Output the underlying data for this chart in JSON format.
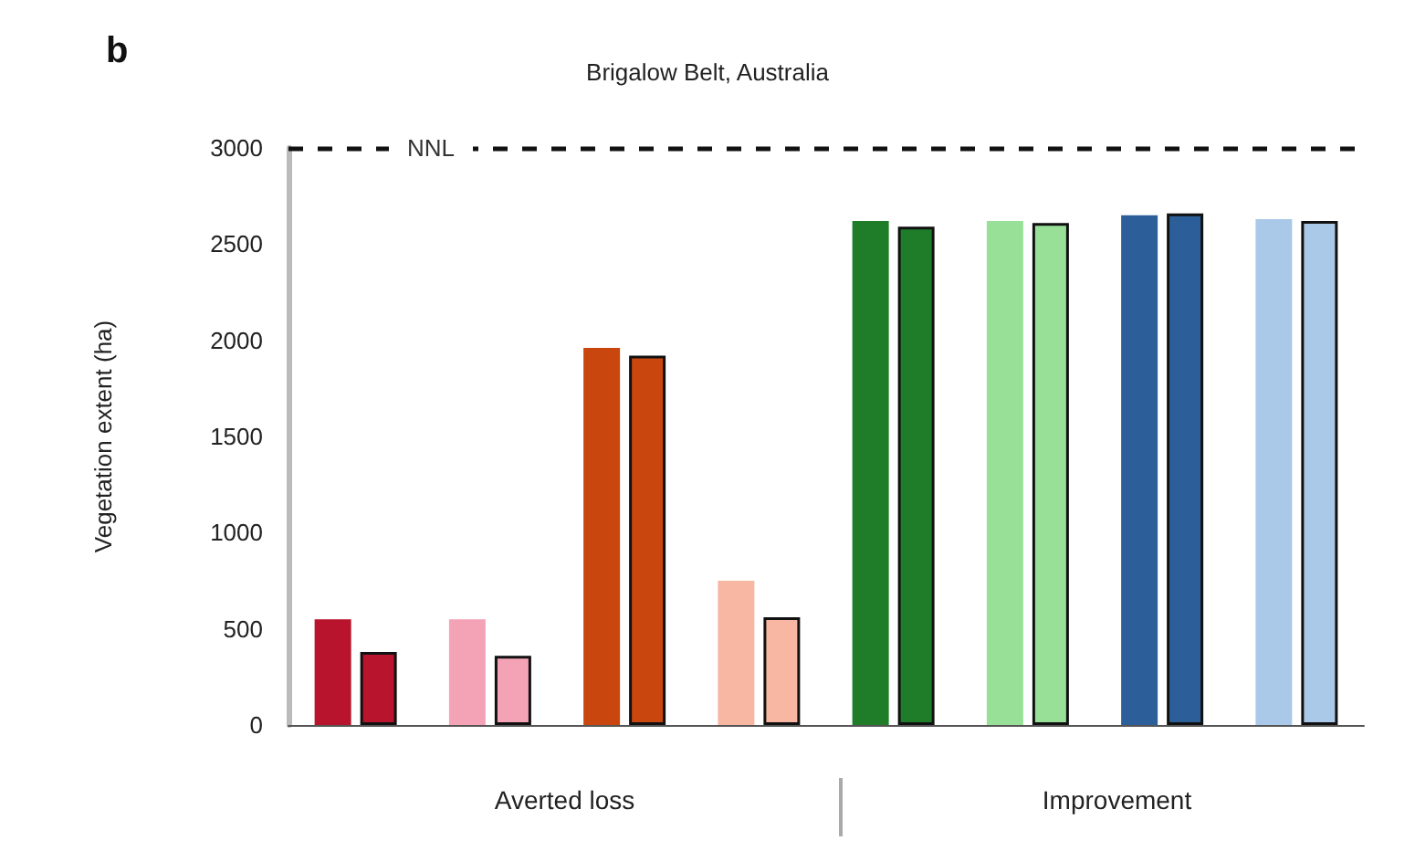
{
  "chart_data": {
    "type": "bar",
    "title": "Brigalow Belt, Australia",
    "ylabel": "Vegetation extent (ha)",
    "annotations": [
      "b",
      "Averted loss",
      "Improvement"
    ],
    "categories": [
      null,
      null,
      null,
      null,
      null,
      null,
      null,
      null
    ],
    "series": [
      {
        "colors": [
          "#b8142e",
          "#f4a3b6",
          "#c9460f",
          "#f7b7a2",
          "#1f7d2a",
          "#98e098",
          "#2c5f99",
          "#aac8e8"
        ],
        "values": [
          550,
          550,
          1960,
          750,
          2620,
          2620,
          2650,
          2630
        ]
      },
      {
        "colors": [
          "#b8142e",
          "#f4a3b6",
          "#c9460f",
          "#f7b7a2",
          "#1f7d2a",
          "#98e098",
          "#2c5f99",
          "#aac8e8"
        ],
        "values": [
          380,
          360,
          1920,
          560,
          2590,
          2610,
          2660,
          2620
        ]
      }
    ],
    "ylim": [
      0,
      3000
    ],
    "yticks": [
      0,
      500,
      1000,
      1500,
      2000,
      2500,
      3000
    ],
    "grid": false,
    "ref_lines": [
      {
        "axis": "y",
        "value": 3000,
        "label": "NNL",
        "line_style": "dashed",
        "color": "#111111"
      }
    ]
  }
}
